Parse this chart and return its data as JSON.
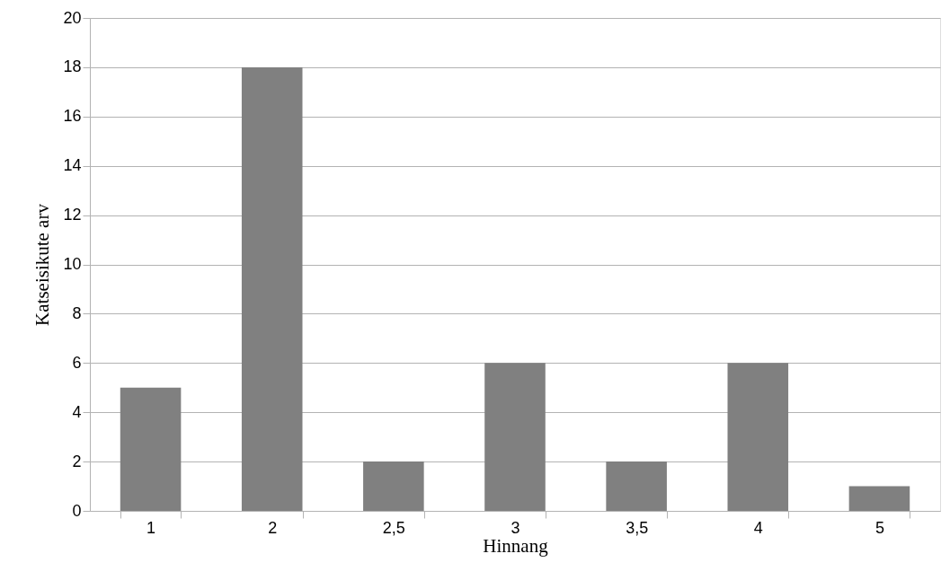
{
  "chart_data": {
    "type": "bar",
    "xlabel": "Hinnang",
    "ylabel": "Katseisikute arv",
    "categories": [
      "1",
      "2",
      "2,5",
      "3",
      "3,5",
      "4",
      "5"
    ],
    "values": [
      5,
      18,
      2,
      6,
      2,
      6,
      1
    ],
    "color": "#808080",
    "ylim": [
      0,
      20
    ],
    "yticks": [
      0,
      2,
      4,
      6,
      8,
      10,
      12,
      14,
      16,
      18,
      20
    ],
    "grid": "y"
  }
}
